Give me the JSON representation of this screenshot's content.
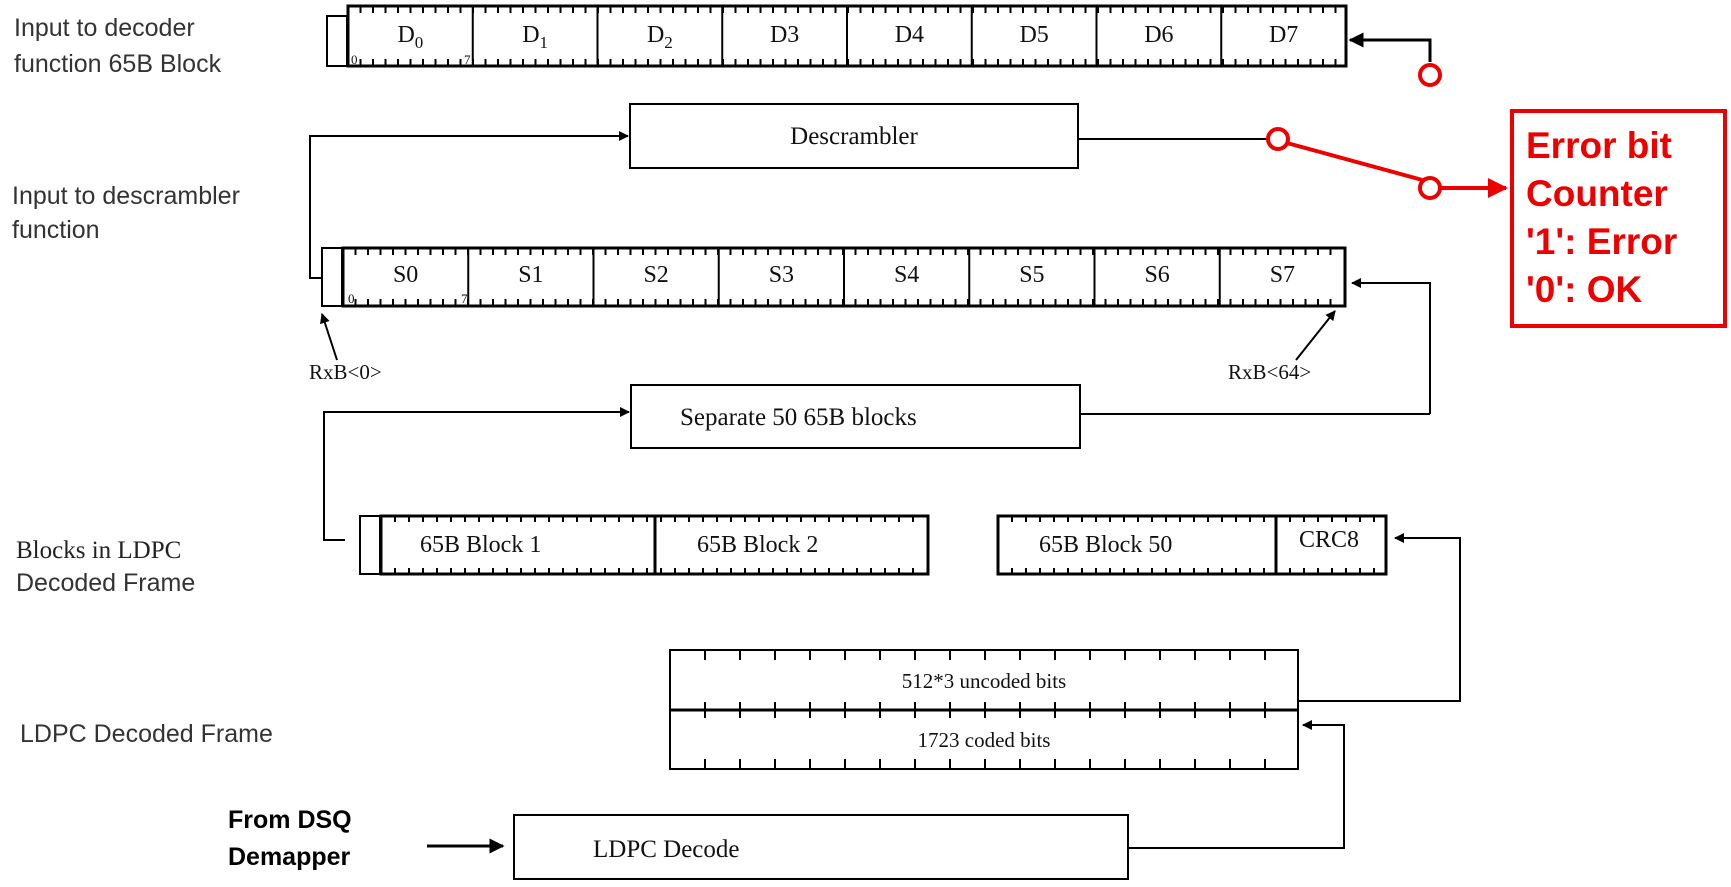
{
  "labels": {
    "decoder_input_line1": "Input to decoder",
    "decoder_input_line2": "function 65B Block",
    "descrambler_input_line1": "Input to descrambler",
    "descrambler_input_line2": "function",
    "ldpc_blocks_line1": "Blocks in LDPC",
    "ldpc_blocks_line2": "Decoded Frame",
    "ldpc_frame": "LDPC Decoded Frame",
    "from_dsq_line1": "From DSQ",
    "from_dsq_line2": "Demapper"
  },
  "decoder_block": {
    "cells": [
      "D",
      "D",
      "D",
      "D3",
      "D4",
      "D5",
      "D6",
      "D7"
    ],
    "subscripts": [
      "0",
      "1",
      "2",
      "",
      "",
      "",
      "",
      ""
    ],
    "first_bit": "0",
    "last_bit": "7"
  },
  "descrambler": {
    "label": "Descrambler"
  },
  "descrambler_block": {
    "cells": [
      "S0",
      "S1",
      "S2",
      "S3",
      "S4",
      "S5",
      "S6",
      "S7"
    ],
    "first_bit": "0",
    "last_bit": "7",
    "rx_start": "RxB<0>",
    "rx_end": "RxB<64>"
  },
  "separator": {
    "label": "Separate 50 65B blocks"
  },
  "ldpc_blocks": {
    "block1": "65B Block 1",
    "block2": "65B Block 2",
    "block50": "65B Block 50",
    "crc": "CRC8"
  },
  "frame": {
    "uncoded": "512*3 uncoded bits",
    "coded": "1723 coded bits"
  },
  "decode": {
    "label": "LDPC Decode"
  },
  "error_counter": {
    "line1": "Error bit",
    "line2": "Counter",
    "line3": "'1': Error",
    "line4": "'0': OK"
  },
  "colors": {
    "line": "#000000",
    "accent": "#ee0000",
    "text": "#333333"
  }
}
